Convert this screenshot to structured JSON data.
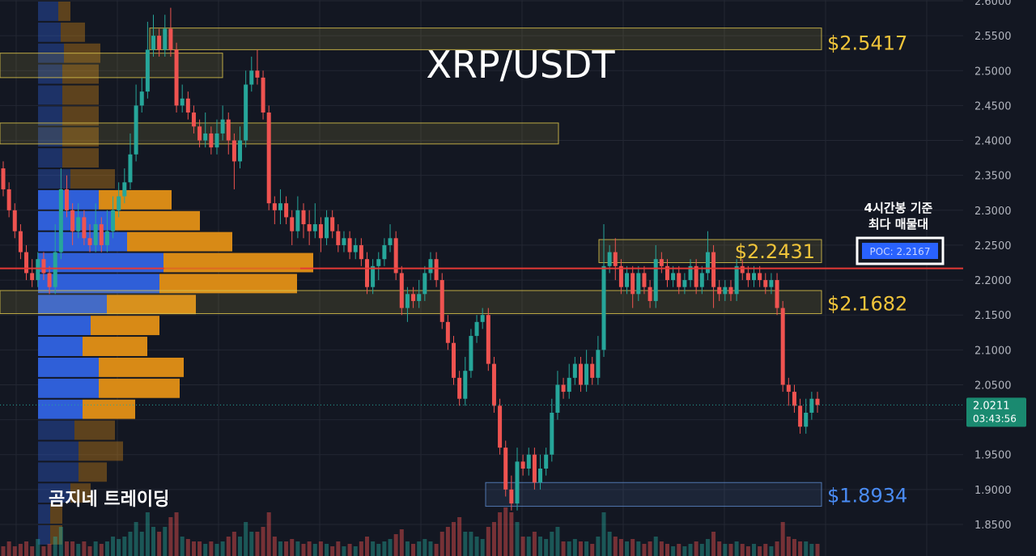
{
  "title": "XRP/USDT",
  "watermark": "곰지네 트레이딩",
  "annotation": {
    "line1": "4시간봉 기준",
    "line2": "최다 매물대",
    "poc_label": "POC: 2.2167"
  },
  "price_tag": {
    "price": "2.0211",
    "countdown": "03:43:56"
  },
  "colors": {
    "background": "#131722",
    "grid": "#232733",
    "up": "#26a69a",
    "down": "#ef5350",
    "zone_gold": "#d9c24a",
    "zone_blue": "#5b86c7",
    "label_gold": "#f0c43a",
    "label_blue": "#4a8cf5",
    "poc_line": "#e53935",
    "profile_blue": "#2f5fd8",
    "profile_orange": "#d88a16",
    "price_tag": "#1a8a70"
  },
  "chart_data": {
    "type": "candlestick",
    "symbol": "XRP/USDT",
    "ylim": [
      1.82,
      2.6
    ],
    "y_ticks": [
      "1.8500",
      "1.9000",
      "1.9500",
      "2.0000",
      "2.0500",
      "2.1000",
      "2.1500",
      "2.2000",
      "2.2500",
      "2.3000",
      "2.3500",
      "2.4000",
      "2.4500",
      "2.5000",
      "2.5500",
      "2.6000"
    ],
    "y_tick_values": [
      1.85,
      1.9,
      1.95,
      2.0,
      2.05,
      2.1,
      2.15,
      2.2,
      2.25,
      2.3,
      2.35,
      2.4,
      2.45,
      2.5,
      2.55,
      2.6
    ],
    "current_price": 2.0211,
    "poc": 2.2167,
    "levels": [
      {
        "label": "$2.5417",
        "value": 2.5417,
        "color": "gold"
      },
      {
        "label": "$2.2431",
        "value": 2.2431,
        "color": "gold"
      },
      {
        "label": "$2.1682",
        "value": 2.1682,
        "color": "gold"
      },
      {
        "label": "$1.8934",
        "value": 1.8934,
        "color": "blue"
      }
    ],
    "zones": [
      {
        "low": 2.53,
        "high": 2.561,
        "color": "gold"
      },
      {
        "low": 2.49,
        "high": 2.525,
        "color": "gold"
      },
      {
        "low": 2.395,
        "high": 2.425,
        "color": "gold"
      },
      {
        "low": 2.225,
        "high": 2.258,
        "color": "gold"
      },
      {
        "low": 2.152,
        "high": 2.185,
        "color": "gold"
      },
      {
        "low": 1.876,
        "high": 1.91,
        "color": "blue"
      }
    ],
    "volume_profile": [
      {
        "price": 2.585,
        "buy": 0.25,
        "sell": 0.15,
        "faded": true
      },
      {
        "price": 2.555,
        "buy": 0.28,
        "sell": 0.3,
        "faded": true
      },
      {
        "price": 2.525,
        "buy": 0.32,
        "sell": 0.45,
        "faded": true
      },
      {
        "price": 2.495,
        "buy": 0.3,
        "sell": 0.45,
        "faded": true
      },
      {
        "price": 2.465,
        "buy": 0.3,
        "sell": 0.45,
        "faded": true
      },
      {
        "price": 2.435,
        "buy": 0.3,
        "sell": 0.45,
        "faded": true
      },
      {
        "price": 2.405,
        "buy": 0.3,
        "sell": 0.45,
        "faded": true
      },
      {
        "price": 2.375,
        "buy": 0.3,
        "sell": 0.45,
        "faded": true
      },
      {
        "price": 2.345,
        "buy": 0.4,
        "sell": 0.55,
        "faded": true
      },
      {
        "price": 2.315,
        "buy": 0.75,
        "sell": 0.9,
        "faded": false
      },
      {
        "price": 2.285,
        "buy": 0.95,
        "sell": 1.05,
        "faded": false
      },
      {
        "price": 2.255,
        "buy": 1.1,
        "sell": 1.3,
        "faded": false
      },
      {
        "price": 2.225,
        "buy": 1.55,
        "sell": 1.85,
        "faded": false
      },
      {
        "price": 2.195,
        "buy": 1.5,
        "sell": 1.7,
        "faded": false
      },
      {
        "price": 2.165,
        "buy": 0.85,
        "sell": 1.1,
        "faded": false
      },
      {
        "price": 2.135,
        "buy": 0.65,
        "sell": 0.85,
        "faded": false
      },
      {
        "price": 2.105,
        "buy": 0.55,
        "sell": 0.8,
        "faded": false
      },
      {
        "price": 2.075,
        "buy": 0.75,
        "sell": 1.05,
        "faded": false
      },
      {
        "price": 2.045,
        "buy": 0.75,
        "sell": 1.0,
        "faded": false
      },
      {
        "price": 2.015,
        "buy": 0.55,
        "sell": 0.65,
        "faded": false
      },
      {
        "price": 1.985,
        "buy": 0.45,
        "sell": 0.5,
        "faded": true
      },
      {
        "price": 1.955,
        "buy": 0.5,
        "sell": 0.55,
        "faded": true
      },
      {
        "price": 1.925,
        "buy": 0.5,
        "sell": 0.35,
        "faded": true
      },
      {
        "price": 1.895,
        "buy": 0.4,
        "sell": 0.25,
        "faded": true
      },
      {
        "price": 1.865,
        "buy": 0.15,
        "sell": 0.15,
        "faded": true
      },
      {
        "price": 1.835,
        "buy": 0.15,
        "sell": 0.15,
        "faded": true
      }
    ],
    "candles": [
      [
        2.36,
        2.33,
        2.37,
        2.32
      ],
      [
        2.33,
        2.3,
        2.34,
        2.29
      ],
      [
        2.3,
        2.27,
        2.31,
        2.26
      ],
      [
        2.27,
        2.24,
        2.28,
        2.23
      ],
      [
        2.24,
        2.21,
        2.25,
        2.2
      ],
      [
        2.21,
        2.2,
        2.23,
        2.19
      ],
      [
        2.2,
        2.23,
        2.24,
        2.19
      ],
      [
        2.23,
        2.21,
        2.24,
        2.2
      ],
      [
        2.21,
        2.19,
        2.22,
        2.18
      ],
      [
        2.19,
        2.24,
        2.28,
        2.18
      ],
      [
        2.24,
        2.33,
        2.36,
        2.23
      ],
      [
        2.33,
        2.3,
        2.35,
        2.29
      ],
      [
        2.3,
        2.27,
        2.31,
        2.25
      ],
      [
        2.27,
        2.29,
        2.31,
        2.26
      ],
      [
        2.29,
        2.26,
        2.3,
        2.25
      ],
      [
        2.26,
        2.25,
        2.28,
        2.24
      ],
      [
        2.25,
        2.28,
        2.31,
        2.24
      ],
      [
        2.28,
        2.25,
        2.29,
        2.24
      ],
      [
        2.25,
        2.27,
        2.3,
        2.24
      ],
      [
        2.27,
        2.3,
        2.32,
        2.26
      ],
      [
        2.3,
        2.32,
        2.34,
        2.29
      ],
      [
        2.32,
        2.34,
        2.36,
        2.31
      ],
      [
        2.34,
        2.38,
        2.41,
        2.33
      ],
      [
        2.38,
        2.45,
        2.48,
        2.37
      ],
      [
        2.45,
        2.47,
        2.49,
        2.44
      ],
      [
        2.47,
        2.53,
        2.57,
        2.46
      ],
      [
        2.53,
        2.55,
        2.58,
        2.52
      ],
      [
        2.55,
        2.53,
        2.56,
        2.52
      ],
      [
        2.53,
        2.56,
        2.58,
        2.52
      ],
      [
        2.56,
        2.53,
        2.59,
        2.52
      ],
      [
        2.53,
        2.45,
        2.54,
        2.44
      ],
      [
        2.45,
        2.46,
        2.48,
        2.44
      ],
      [
        2.46,
        2.44,
        2.47,
        2.43
      ],
      [
        2.44,
        2.42,
        2.45,
        2.41
      ],
      [
        2.42,
        2.4,
        2.43,
        2.39
      ],
      [
        2.4,
        2.41,
        2.44,
        2.39
      ],
      [
        2.41,
        2.39,
        2.42,
        2.38
      ],
      [
        2.39,
        2.41,
        2.43,
        2.38
      ],
      [
        2.41,
        2.43,
        2.45,
        2.4
      ],
      [
        2.43,
        2.4,
        2.44,
        2.38
      ],
      [
        2.4,
        2.37,
        2.41,
        2.33
      ],
      [
        2.37,
        2.4,
        2.42,
        2.36
      ],
      [
        2.4,
        2.48,
        2.5,
        2.39
      ],
      [
        2.48,
        2.5,
        2.52,
        2.47
      ],
      [
        2.5,
        2.49,
        2.53,
        2.48
      ],
      [
        2.49,
        2.44,
        2.5,
        2.43
      ],
      [
        2.44,
        2.31,
        2.45,
        2.3
      ],
      [
        2.31,
        2.3,
        2.32,
        2.28
      ],
      [
        2.3,
        2.31,
        2.33,
        2.28
      ],
      [
        2.31,
        2.29,
        2.32,
        2.28
      ],
      [
        2.29,
        2.27,
        2.3,
        2.25
      ],
      [
        2.27,
        2.3,
        2.32,
        2.26
      ],
      [
        2.3,
        2.28,
        2.31,
        2.26
      ],
      [
        2.28,
        2.27,
        2.3,
        2.25
      ],
      [
        2.27,
        2.28,
        2.31,
        2.26
      ],
      [
        2.28,
        2.26,
        2.29,
        2.24
      ],
      [
        2.26,
        2.29,
        2.3,
        2.25
      ],
      [
        2.29,
        2.27,
        2.3,
        2.26
      ],
      [
        2.27,
        2.25,
        2.28,
        2.24
      ],
      [
        2.25,
        2.26,
        2.27,
        2.24
      ],
      [
        2.26,
        2.24,
        2.27,
        2.23
      ],
      [
        2.24,
        2.25,
        2.26,
        2.23
      ],
      [
        2.25,
        2.23,
        2.26,
        2.22
      ],
      [
        2.23,
        2.19,
        2.24,
        2.18
      ],
      [
        2.19,
        2.22,
        2.23,
        2.18
      ],
      [
        2.22,
        2.23,
        2.24,
        2.2
      ],
      [
        2.23,
        2.25,
        2.26,
        2.22
      ],
      [
        2.25,
        2.26,
        2.28,
        2.24
      ],
      [
        2.26,
        2.21,
        2.27,
        2.2
      ],
      [
        2.21,
        2.16,
        2.22,
        2.15
      ],
      [
        2.16,
        2.18,
        2.19,
        2.14
      ],
      [
        2.18,
        2.17,
        2.19,
        2.16
      ],
      [
        2.17,
        2.18,
        2.2,
        2.16
      ],
      [
        2.18,
        2.21,
        2.22,
        2.17
      ],
      [
        2.21,
        2.23,
        2.24,
        2.2
      ],
      [
        2.23,
        2.2,
        2.24,
        2.19
      ],
      [
        2.2,
        2.14,
        2.21,
        2.13
      ],
      [
        2.14,
        2.11,
        2.15,
        2.1
      ],
      [
        2.11,
        2.06,
        2.12,
        2.05
      ],
      [
        2.06,
        2.03,
        2.07,
        2.02
      ],
      [
        2.03,
        2.07,
        2.09,
        2.02
      ],
      [
        2.07,
        2.12,
        2.13,
        2.06
      ],
      [
        2.12,
        2.14,
        2.15,
        2.11
      ],
      [
        2.14,
        2.15,
        2.16,
        2.13
      ],
      [
        2.15,
        2.08,
        2.16,
        2.07
      ],
      [
        2.08,
        2.02,
        2.09,
        2.01
      ],
      [
        2.02,
        1.96,
        2.03,
        1.95
      ],
      [
        1.96,
        1.9,
        1.97,
        1.89
      ],
      [
        1.9,
        1.88,
        1.92,
        1.87
      ],
      [
        1.88,
        1.94,
        1.96,
        1.87
      ],
      [
        1.94,
        1.93,
        1.95,
        1.92
      ],
      [
        1.93,
        1.95,
        1.96,
        1.92
      ],
      [
        1.95,
        1.91,
        1.96,
        1.9
      ],
      [
        1.91,
        1.93,
        1.95,
        1.9
      ],
      [
        1.93,
        1.95,
        1.96,
        1.92
      ],
      [
        1.95,
        2.01,
        2.03,
        1.94
      ],
      [
        2.01,
        2.05,
        2.07,
        2.0
      ],
      [
        2.05,
        2.04,
        2.06,
        2.03
      ],
      [
        2.04,
        2.06,
        2.08,
        2.03
      ],
      [
        2.06,
        2.08,
        2.09,
        2.05
      ],
      [
        2.08,
        2.05,
        2.09,
        2.04
      ],
      [
        2.05,
        2.08,
        2.1,
        2.04
      ],
      [
        2.08,
        2.06,
        2.09,
        2.05
      ],
      [
        2.06,
        2.1,
        2.12,
        2.05
      ],
      [
        2.1,
        2.22,
        2.28,
        2.09
      ],
      [
        2.22,
        2.24,
        2.25,
        2.21
      ],
      [
        2.24,
        2.22,
        2.26,
        2.2
      ],
      [
        2.22,
        2.19,
        2.23,
        2.18
      ],
      [
        2.19,
        2.21,
        2.22,
        2.18
      ],
      [
        2.21,
        2.18,
        2.22,
        2.16
      ],
      [
        2.18,
        2.21,
        2.22,
        2.17
      ],
      [
        2.21,
        2.19,
        2.22,
        2.18
      ],
      [
        2.19,
        2.17,
        2.2,
        2.16
      ],
      [
        2.17,
        2.23,
        2.25,
        2.16
      ],
      [
        2.23,
        2.22,
        2.24,
        2.21
      ],
      [
        2.22,
        2.2,
        2.23,
        2.19
      ],
      [
        2.2,
        2.21,
        2.22,
        2.19
      ],
      [
        2.21,
        2.19,
        2.22,
        2.18
      ],
      [
        2.19,
        2.2,
        2.21,
        2.18
      ],
      [
        2.2,
        2.22,
        2.23,
        2.19
      ],
      [
        2.22,
        2.19,
        2.23,
        2.18
      ],
      [
        2.19,
        2.21,
        2.22,
        2.18
      ],
      [
        2.21,
        2.24,
        2.27,
        2.2
      ],
      [
        2.24,
        2.19,
        2.25,
        2.16
      ],
      [
        2.19,
        2.18,
        2.2,
        2.17
      ],
      [
        2.18,
        2.19,
        2.2,
        2.17
      ],
      [
        2.19,
        2.18,
        2.2,
        2.17
      ],
      [
        2.18,
        2.22,
        2.23,
        2.17
      ],
      [
        2.22,
        2.21,
        2.23,
        2.2
      ],
      [
        2.21,
        2.2,
        2.22,
        2.19
      ],
      [
        2.2,
        2.21,
        2.22,
        2.19
      ],
      [
        2.21,
        2.2,
        2.22,
        2.19
      ],
      [
        2.2,
        2.19,
        2.21,
        2.18
      ],
      [
        2.19,
        2.2,
        2.21,
        2.18
      ],
      [
        2.2,
        2.16,
        2.21,
        2.15
      ],
      [
        2.16,
        2.05,
        2.17,
        2.04
      ],
      [
        2.05,
        2.04,
        2.06,
        2.02
      ],
      [
        2.04,
        2.02,
        2.05,
        2.01
      ],
      [
        2.02,
        1.99,
        2.03,
        1.98
      ],
      [
        1.99,
        2.01,
        2.03,
        1.98
      ],
      [
        2.01,
        2.03,
        2.04,
        2.0
      ],
      [
        2.03,
        2.0211,
        2.04,
        2.01
      ]
    ],
    "volumes": [
      0.2,
      0.3,
      0.2,
      0.25,
      0.3,
      0.2,
      0.35,
      0.2,
      0.25,
      0.4,
      0.6,
      0.3,
      0.3,
      0.25,
      0.3,
      0.2,
      0.3,
      0.25,
      0.3,
      0.4,
      0.35,
      0.4,
      0.5,
      0.7,
      0.5,
      0.9,
      0.6,
      0.5,
      0.6,
      0.8,
      0.9,
      0.4,
      0.35,
      0.3,
      0.3,
      0.25,
      0.3,
      0.25,
      0.3,
      0.4,
      0.5,
      0.4,
      0.7,
      0.5,
      0.5,
      0.6,
      0.9,
      0.4,
      0.3,
      0.3,
      0.35,
      0.3,
      0.25,
      0.3,
      0.25,
      0.3,
      0.25,
      0.2,
      0.3,
      0.2,
      0.25,
      0.2,
      0.3,
      0.4,
      0.3,
      0.25,
      0.3,
      0.35,
      0.45,
      0.55,
      0.3,
      0.25,
      0.3,
      0.35,
      0.3,
      0.25,
      0.5,
      0.6,
      0.7,
      0.8,
      0.5,
      0.5,
      0.4,
      0.35,
      0.6,
      0.7,
      0.9,
      1.0,
      0.9,
      0.7,
      0.4,
      0.4,
      0.5,
      0.4,
      0.35,
      0.5,
      0.6,
      0.3,
      0.3,
      0.35,
      0.3,
      0.3,
      0.25,
      0.4,
      0.9,
      0.5,
      0.4,
      0.35,
      0.3,
      0.35,
      0.3,
      0.25,
      0.3,
      0.4,
      0.3,
      0.25,
      0.2,
      0.25,
      0.2,
      0.25,
      0.3,
      0.25,
      0.35,
      0.5,
      0.3,
      0.25,
      0.25,
      0.3,
      0.25,
      0.2,
      0.25,
      0.2,
      0.25,
      0.2,
      0.3,
      0.7,
      0.4,
      0.35,
      0.3,
      0.3,
      0.25,
      0.25
    ]
  }
}
